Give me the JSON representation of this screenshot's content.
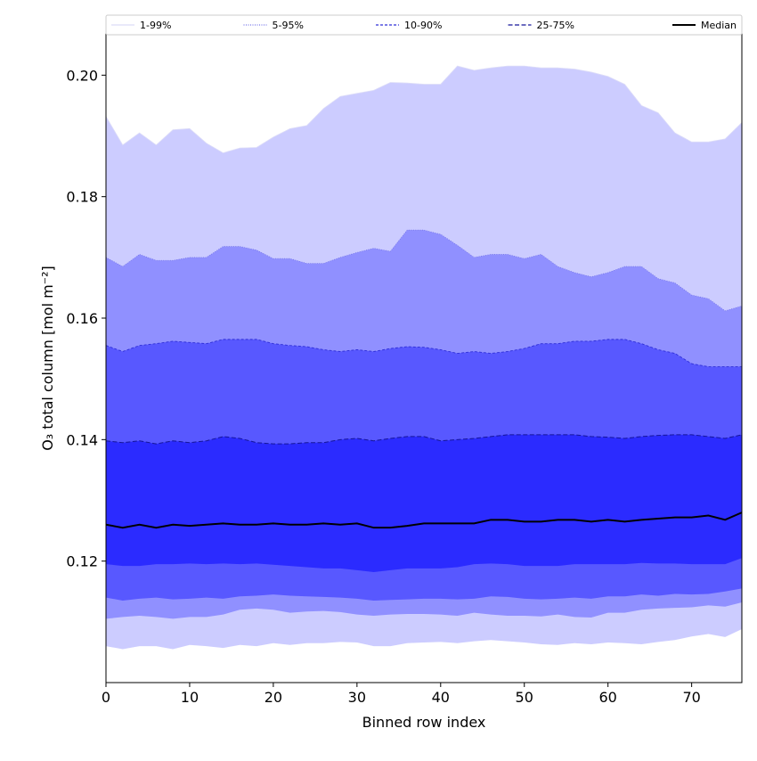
{
  "chart_data": {
    "type": "area",
    "title": "",
    "xlabel": "Binned row index",
    "ylabel": "O₃ total column [mol m⁻²]",
    "xlim": [
      0,
      76
    ],
    "ylim": [
      0.1,
      0.2068
    ],
    "x_ticks": [
      0,
      10,
      20,
      30,
      40,
      50,
      60,
      70
    ],
    "y_ticks": [
      0.12,
      0.14,
      0.16,
      0.18,
      0.2
    ],
    "x_tick_labels": [
      "0",
      "10",
      "20",
      "30",
      "40",
      "50",
      "60",
      "70"
    ],
    "y_tick_labels": [
      "0.12",
      "0.14",
      "0.16",
      "0.18",
      "0.20"
    ],
    "grid": false,
    "legend_position": "top, spanning axes width",
    "x_index": {
      "start": 0,
      "step": 2,
      "count": 39
    },
    "bands": [
      {
        "name": "1-99%",
        "fill": "#ccccff",
        "line_color": "#dcdcf8",
        "dash": "",
        "lower": [
          0.106,
          0.1055,
          0.106,
          0.106,
          0.1055,
          0.1062,
          0.106,
          0.1057,
          0.1062,
          0.106,
          0.1065,
          0.1062,
          0.1065,
          0.1065,
          0.1067,
          0.1066,
          0.106,
          0.106,
          0.1065,
          0.1066,
          0.1067,
          0.1065,
          0.1068,
          0.107,
          0.1068,
          0.1066,
          0.1063,
          0.1062,
          0.1065,
          0.1063,
          0.1066,
          0.1065,
          0.1063,
          0.1067,
          0.107,
          0.1076,
          0.108,
          0.1075,
          0.1088
        ],
        "upper": [
          0.1932,
          0.1885,
          0.1905,
          0.1885,
          0.191,
          0.1912,
          0.1888,
          0.1872,
          0.188,
          0.1881,
          0.1898,
          0.1912,
          0.1917,
          0.1945,
          0.1965,
          0.197,
          0.1975,
          0.1988,
          0.1987,
          0.1985,
          0.1985,
          0.2015,
          0.2008,
          0.2012,
          0.2015,
          0.2015,
          0.2012,
          0.2012,
          0.201,
          0.2005,
          0.1998,
          0.1985,
          0.195,
          0.1938,
          0.1905,
          0.189,
          0.189,
          0.1895,
          0.1922
        ]
      },
      {
        "name": "5-95%",
        "fill": "#9090ff",
        "line_color": "#7575e8",
        "dash": "1,1.5",
        "lower": [
          0.1105,
          0.1108,
          0.111,
          0.1108,
          0.1105,
          0.1108,
          0.1108,
          0.1112,
          0.112,
          0.1122,
          0.112,
          0.1115,
          0.1117,
          0.1118,
          0.1116,
          0.1112,
          0.111,
          0.1112,
          0.1113,
          0.1113,
          0.1112,
          0.111,
          0.1115,
          0.1112,
          0.111,
          0.111,
          0.1109,
          0.1112,
          0.1108,
          0.1107,
          0.1115,
          0.1115,
          0.112,
          0.1122,
          0.1123,
          0.1124,
          0.1127,
          0.1125,
          0.1132
        ]
      },
      {
        "name": "10-90%",
        "fill": "#5858ff",
        "line_color": "#2f2fd8",
        "dash": "3,2",
        "lower": [
          0.114,
          0.1135,
          0.1138,
          0.114,
          0.1137,
          0.1138,
          0.114,
          0.1138,
          0.1142,
          0.1143,
          0.1145,
          0.1143,
          0.1142,
          0.1141,
          0.114,
          0.1138,
          0.1135,
          0.1136,
          0.1137,
          0.1138,
          0.1138,
          0.1137,
          0.1138,
          0.1142,
          0.1141,
          0.1138,
          0.1137,
          0.1138,
          0.114,
          0.1138,
          0.1142,
          0.1142,
          0.1145,
          0.1143,
          0.1146,
          0.1145,
          0.1146,
          0.115,
          0.1155
        ]
      },
      {
        "name": "25-75%",
        "fill": "#2b2bff",
        "line_color": "#15159a",
        "dash": "5,2.5",
        "lower": [
          0.1195,
          0.1192,
          0.1192,
          0.1195,
          0.1195,
          0.1196,
          0.1195,
          0.1196,
          0.1195,
          0.1196,
          0.1194,
          0.1192,
          0.119,
          0.1188,
          0.1188,
          0.1185,
          0.1182,
          0.1185,
          0.1188,
          0.1188,
          0.1188,
          0.119,
          0.1195,
          0.1196,
          0.1195,
          0.1192,
          0.1192,
          0.1192,
          0.1195,
          0.1195,
          0.1195,
          0.1195,
          0.1197,
          0.1196,
          0.1196,
          0.1195,
          0.1195,
          0.1195,
          0.1205
        ],
        "upper": [
          0.1398,
          0.1395,
          0.1398,
          0.1393,
          0.1398,
          0.1395,
          0.1398,
          0.1405,
          0.1402,
          0.1395,
          0.1393,
          0.1393,
          0.1395,
          0.1395,
          0.14,
          0.1402,
          0.1398,
          0.1402,
          0.1405,
          0.1405,
          0.1398,
          0.14,
          0.1402,
          0.1405,
          0.1408,
          0.1408,
          0.1408,
          0.1408,
          0.1408,
          0.1405,
          0.1404,
          0.1402,
          0.1405,
          0.1407,
          0.1408,
          0.1408,
          0.1405,
          0.1402,
          0.1408
        ]
      },
      {
        "name": "Median",
        "fill": "none",
        "line_color": "#000000",
        "dash": "",
        "values": [
          0.126,
          0.1255,
          0.126,
          0.1255,
          0.126,
          0.1258,
          0.126,
          0.1262,
          0.126,
          0.126,
          0.1262,
          0.126,
          0.126,
          0.1262,
          0.126,
          0.1262,
          0.1255,
          0.1255,
          0.1258,
          0.1262,
          0.1262,
          0.1262,
          0.1262,
          0.1268,
          0.1268,
          0.1265,
          0.1265,
          0.1268,
          0.1268,
          0.1265,
          0.1268,
          0.1265,
          0.1268,
          0.127,
          0.1272,
          0.1272,
          0.1275,
          0.1268,
          0.128
        ]
      }
    ],
    "inner_bounds": {
      "10-90_upper": [
        0.1555,
        0.1545,
        0.1555,
        0.1558,
        0.1562,
        0.156,
        0.1558,
        0.1565,
        0.1565,
        0.1565,
        0.1558,
        0.1555,
        0.1553,
        0.1548,
        0.1545,
        0.1548,
        0.1545,
        0.155,
        0.1553,
        0.1552,
        0.1548,
        0.1542,
        0.1545,
        0.1542,
        0.1545,
        0.155,
        0.1558,
        0.1558,
        0.1562,
        0.1562,
        0.1565,
        0.1565,
        0.1558,
        0.1548,
        0.1542,
        0.1525,
        0.152,
        0.152,
        0.152
      ],
      "5-95_upper": [
        0.17,
        0.1685,
        0.1705,
        0.1695,
        0.1695,
        0.17,
        0.17,
        0.1718,
        0.1718,
        0.1712,
        0.1698,
        0.1698,
        0.169,
        0.169,
        0.17,
        0.1708,
        0.1715,
        0.171,
        0.1745,
        0.1745,
        0.1738,
        0.172,
        0.17,
        0.1705,
        0.1705,
        0.1698,
        0.1705,
        0.1685,
        0.1675,
        0.1668,
        0.1675,
        0.1685,
        0.1685,
        0.1665,
        0.1658,
        0.1638,
        0.1632,
        0.1612,
        0.162
      ]
    },
    "legend": [
      "1-99%",
      "5-95%",
      "10-90%",
      "25-75%",
      "Median"
    ]
  }
}
